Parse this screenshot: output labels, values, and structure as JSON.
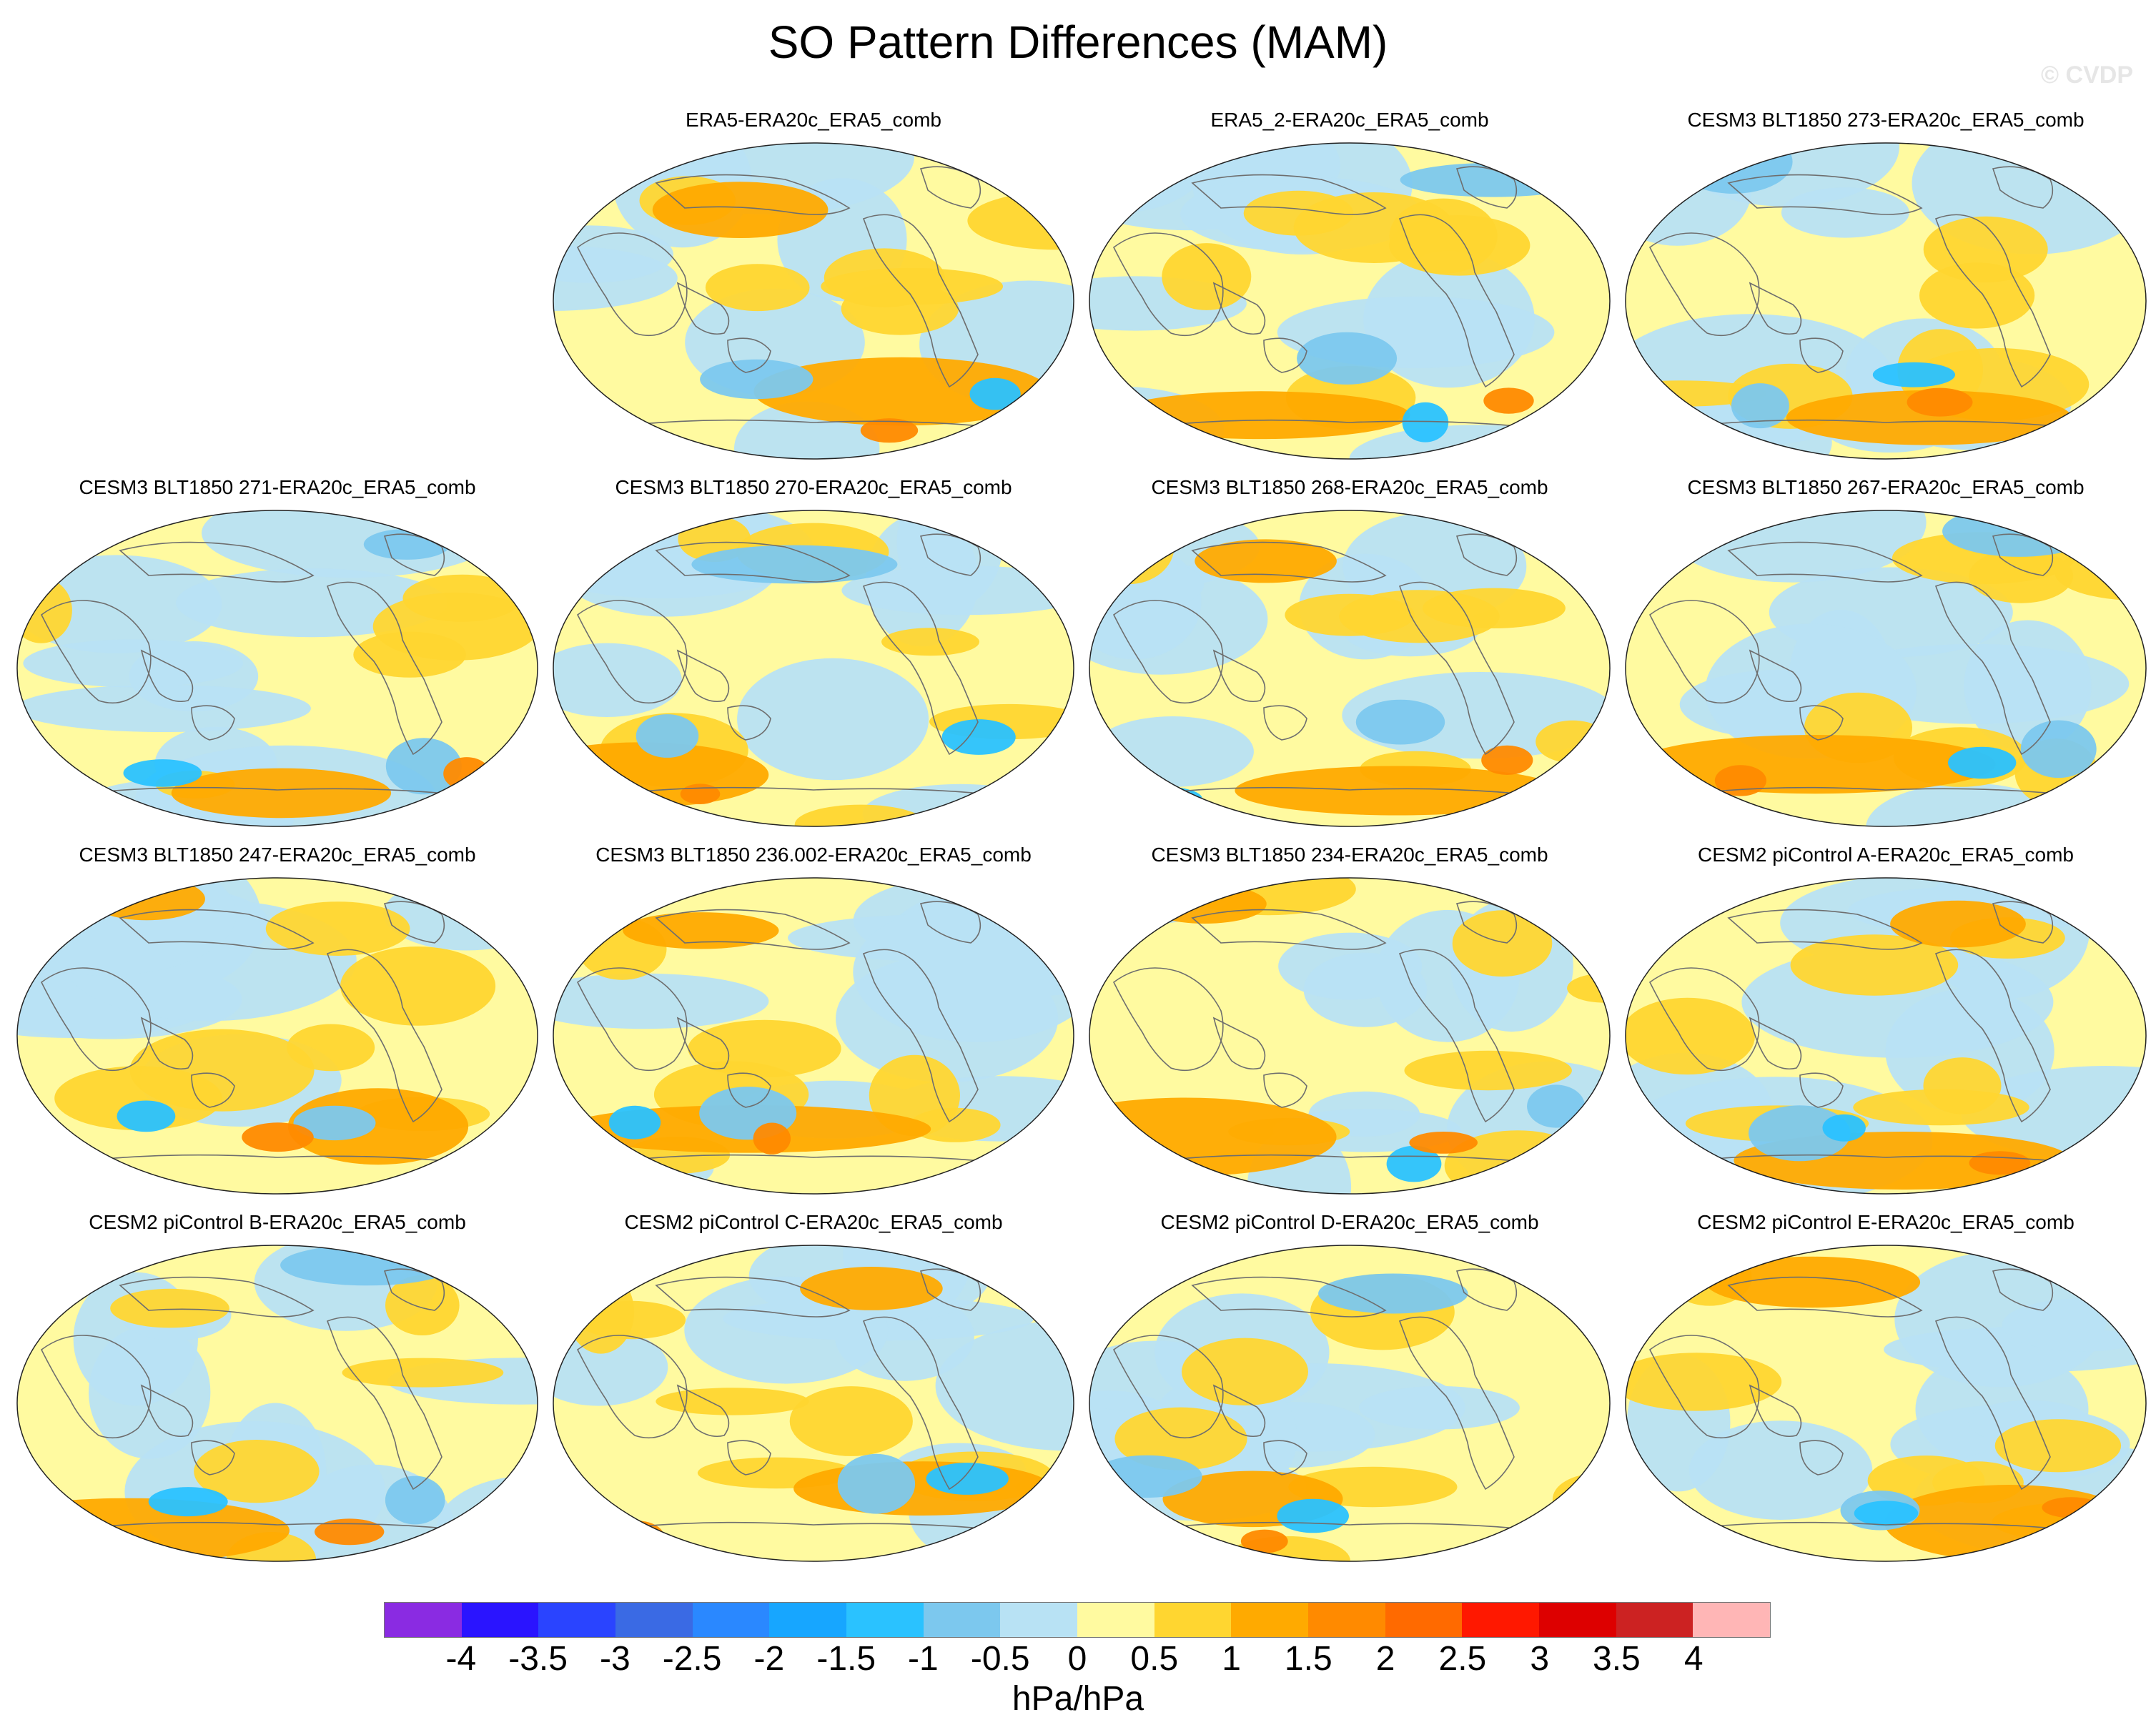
{
  "title": "SO Pattern Differences (MAM)",
  "watermark": "© CVDP",
  "colors": {
    "scale": [
      "#8a2be2",
      "#2a14ff",
      "#2a44ff",
      "#3a6ae4",
      "#2a88ff",
      "#17a6ff",
      "#2ac2ff",
      "#7cc8ee",
      "#b8e2f4",
      "#fffaa0",
      "#ffd630",
      "#ffaa00",
      "#ff8a00",
      "#ff6a00",
      "#ff1800",
      "#dd0000",
      "#cc2222",
      "#ffb6b6"
    ],
    "coast": "#6e6e6e",
    "border": "#222222"
  },
  "colorbar": {
    "labels": [
      "-4",
      "-3.5",
      "-3",
      "-2.5",
      "-2",
      "-1.5",
      "-1",
      "-0.5",
      "0",
      "0.5",
      "1",
      "1.5",
      "2",
      "2.5",
      "3",
      "3.5",
      "4"
    ],
    "units": "hPa/hPa"
  },
  "panels": [
    {
      "title": "ERA5-ERA20c_ERA5_comb",
      "seed": 11
    },
    {
      "title": "ERA5_2-ERA20c_ERA5_comb",
      "seed": 23
    },
    {
      "title": "CESM3 BLT1850 273-ERA20c_ERA5_comb",
      "seed": 37
    },
    {
      "title": "CESM3 BLT1850 271-ERA20c_ERA5_comb",
      "seed": 41
    },
    {
      "title": "CESM3 BLT1850 270-ERA20c_ERA5_comb",
      "seed": 53
    },
    {
      "title": "CESM3 BLT1850 268-ERA20c_ERA5_comb",
      "seed": 61
    },
    {
      "title": "CESM3 BLT1850 267-ERA20c_ERA5_comb",
      "seed": 73
    },
    {
      "title": "CESM3 BLT1850 247-ERA20c_ERA5_comb",
      "seed": 83
    },
    {
      "title": "CESM3 BLT1850 236.002-ERA20c_ERA5_comb",
      "seed": 97
    },
    {
      "title": "CESM3 BLT1850 234-ERA20c_ERA5_comb",
      "seed": 101
    },
    {
      "title": "CESM2 piControl A-ERA20c_ERA5_comb",
      "seed": 113
    },
    {
      "title": "CESM2 piControl B-ERA20c_ERA5_comb",
      "seed": 127
    },
    {
      "title": "CESM2 piControl C-ERA20c_ERA5_comb",
      "seed": 131
    },
    {
      "title": "CESM2 piControl D-ERA20c_ERA5_comb",
      "seed": 149
    },
    {
      "title": "CESM2 piControl E-ERA20c_ERA5_comb",
      "seed": 157
    }
  ]
}
